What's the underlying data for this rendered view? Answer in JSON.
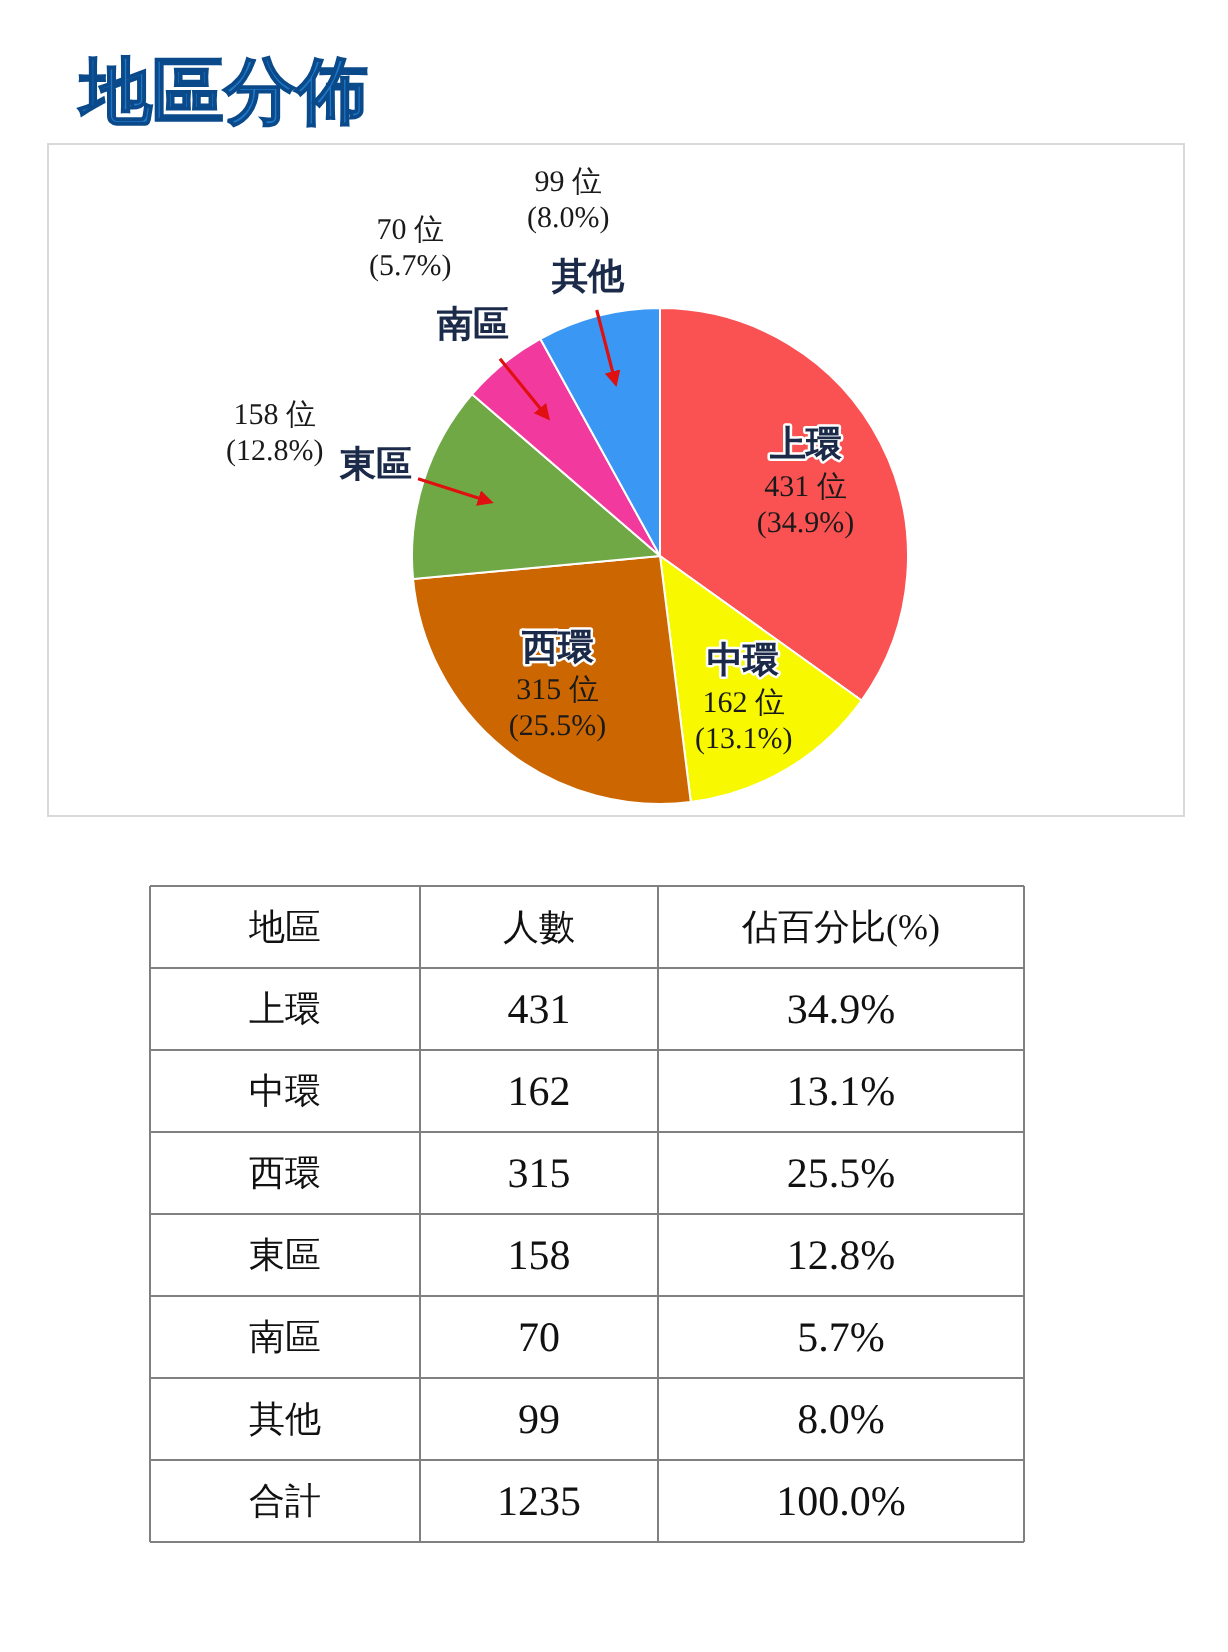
{
  "chart_data": {
    "type": "pie",
    "title": "地區分佈",
    "categories": [
      "上環",
      "中環",
      "西環",
      "東區",
      "南區",
      "其他"
    ],
    "values": [
      431,
      162,
      315,
      158,
      70,
      99
    ],
    "colors": [
      "#fa5252",
      "#f8f800",
      "#cc6600",
      "#6fa845",
      "#f23a9e",
      "#3a98f4"
    ],
    "value_labels": [
      "431 位\n(34.9%)",
      "162 位\n(13.1%)",
      "315 位\n(25.5%)",
      "158 位\n(12.8%)",
      "70 位\n(5.7%)",
      "99 位\n(8.0%)"
    ],
    "annotations": [
      "地區",
      "人數",
      "佔百分比(%)",
      "431",
      "34.9%",
      "162",
      "13.1%",
      "315",
      "25.5%",
      "158",
      "12.8%",
      "70",
      "5.7%",
      "99",
      "8.0%",
      "合計",
      "1235",
      "100.0%"
    ]
  }
}
